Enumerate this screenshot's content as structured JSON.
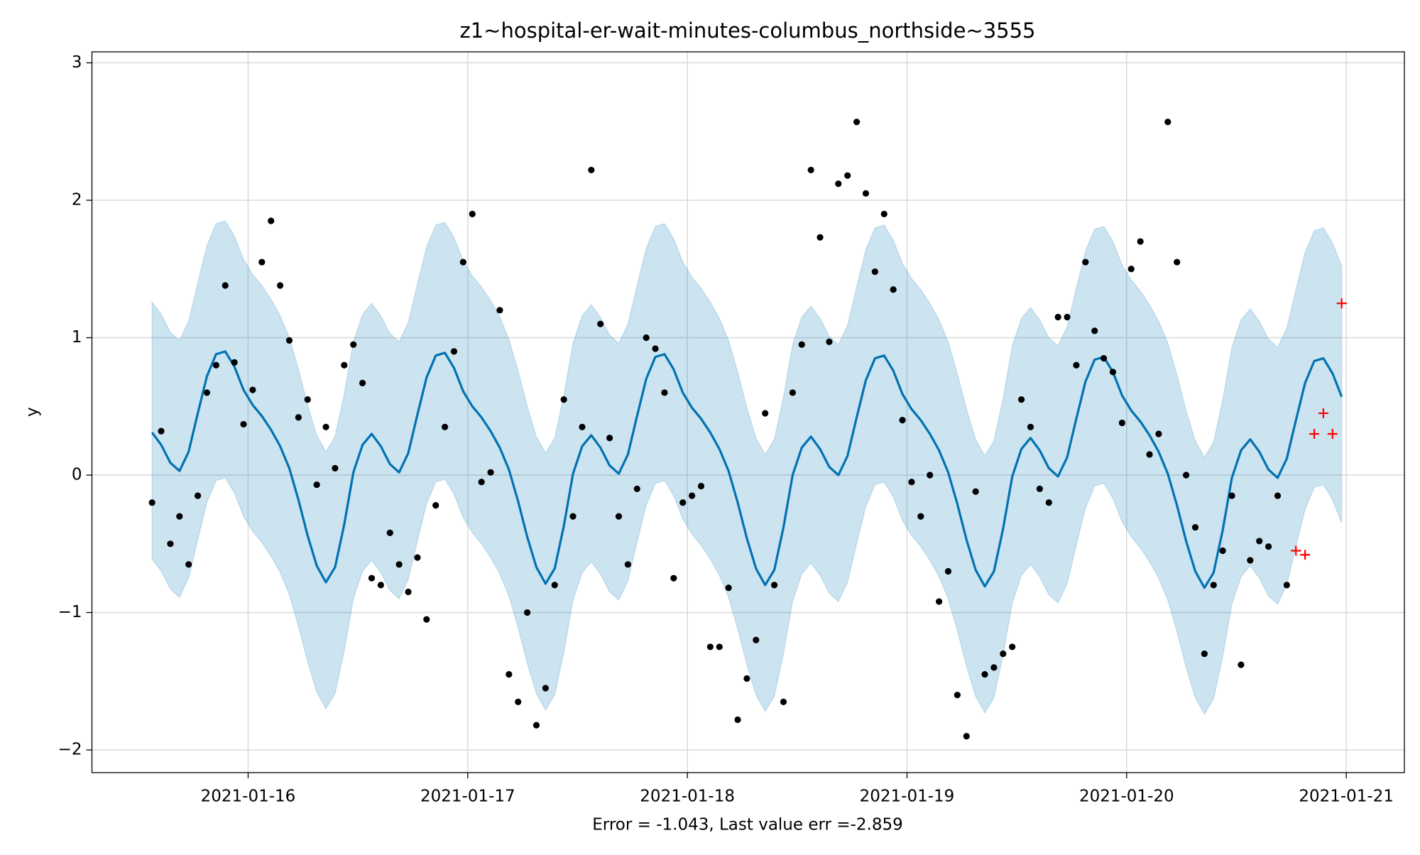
{
  "chart_data": {
    "type": "forecast",
    "title": "z1~hospital-er-wait-minutes-columbus_northside~3555",
    "xlabel": "Error = -1.043, Last value err =-2.859",
    "ylabel": "y",
    "grid": true,
    "xlim": [
      "2021-01-15T06:56",
      "2021-01-21T06:21"
    ],
    "xticks": [
      "2021-01-16",
      "2021-01-17",
      "2021-01-18",
      "2021-01-19",
      "2021-01-20",
      "2021-01-21"
    ],
    "ylim": [
      -2.165,
      3.08
    ],
    "yticks": [
      {
        "value": -2,
        "label": "−2"
      },
      {
        "value": -1,
        "label": "−1"
      },
      0,
      1,
      2,
      3
    ],
    "x": [
      "2021-01-15T13:30",
      "2021-01-15T14:30",
      "2021-01-15T15:30",
      "2021-01-15T16:30",
      "2021-01-15T17:30",
      "2021-01-15T18:30",
      "2021-01-15T19:30",
      "2021-01-15T20:30",
      "2021-01-15T21:30",
      "2021-01-15T22:30",
      "2021-01-15T23:30",
      "2021-01-16T00:30",
      "2021-01-16T01:30",
      "2021-01-16T02:30",
      "2021-01-16T03:30",
      "2021-01-16T04:30",
      "2021-01-16T05:30",
      "2021-01-16T06:30",
      "2021-01-16T07:30",
      "2021-01-16T08:30",
      "2021-01-16T09:30",
      "2021-01-16T10:30",
      "2021-01-16T11:30",
      "2021-01-16T12:30",
      "2021-01-16T13:30",
      "2021-01-16T14:30",
      "2021-01-16T15:30",
      "2021-01-16T16:30",
      "2021-01-16T17:30",
      "2021-01-16T18:30",
      "2021-01-16T19:30",
      "2021-01-16T20:30",
      "2021-01-16T21:30",
      "2021-01-16T22:30",
      "2021-01-16T23:30",
      "2021-01-17T00:30",
      "2021-01-17T01:30",
      "2021-01-17T02:30",
      "2021-01-17T03:30",
      "2021-01-17T04:30",
      "2021-01-17T05:30",
      "2021-01-17T06:30",
      "2021-01-17T07:30",
      "2021-01-17T08:30",
      "2021-01-17T09:30",
      "2021-01-17T10:30",
      "2021-01-17T11:30",
      "2021-01-17T12:30",
      "2021-01-17T13:30",
      "2021-01-17T14:30",
      "2021-01-17T15:30",
      "2021-01-17T16:30",
      "2021-01-17T17:30",
      "2021-01-17T18:30",
      "2021-01-17T19:30",
      "2021-01-17T20:30",
      "2021-01-17T21:30",
      "2021-01-17T22:30",
      "2021-01-17T23:30",
      "2021-01-18T00:30",
      "2021-01-18T01:30",
      "2021-01-18T02:30",
      "2021-01-18T03:30",
      "2021-01-18T04:30",
      "2021-01-18T05:30",
      "2021-01-18T06:30",
      "2021-01-18T07:30",
      "2021-01-18T08:30",
      "2021-01-18T09:30",
      "2021-01-18T10:30",
      "2021-01-18T11:30",
      "2021-01-18T12:30",
      "2021-01-18T13:30",
      "2021-01-18T14:30",
      "2021-01-18T15:30",
      "2021-01-18T16:30",
      "2021-01-18T17:30",
      "2021-01-18T18:30",
      "2021-01-18T19:30",
      "2021-01-18T20:30",
      "2021-01-18T21:30",
      "2021-01-18T22:30",
      "2021-01-18T23:30",
      "2021-01-19T00:30",
      "2021-01-19T01:30",
      "2021-01-19T02:30",
      "2021-01-19T03:30",
      "2021-01-19T04:30",
      "2021-01-19T05:30",
      "2021-01-19T06:30",
      "2021-01-19T07:30",
      "2021-01-19T08:30",
      "2021-01-19T09:30",
      "2021-01-19T10:30",
      "2021-01-19T11:30",
      "2021-01-19T12:30",
      "2021-01-19T13:30",
      "2021-01-19T14:30",
      "2021-01-19T15:30",
      "2021-01-19T16:30",
      "2021-01-19T17:30",
      "2021-01-19T18:30",
      "2021-01-19T19:30",
      "2021-01-19T20:30",
      "2021-01-19T21:30",
      "2021-01-19T22:30",
      "2021-01-19T23:30",
      "2021-01-20T00:30",
      "2021-01-20T01:30",
      "2021-01-20T02:30",
      "2021-01-20T03:30",
      "2021-01-20T04:30",
      "2021-01-20T05:30",
      "2021-01-20T06:30",
      "2021-01-20T07:30",
      "2021-01-20T08:30",
      "2021-01-20T09:30",
      "2021-01-20T10:30",
      "2021-01-20T11:30",
      "2021-01-20T12:30",
      "2021-01-20T13:30",
      "2021-01-20T14:30",
      "2021-01-20T15:30",
      "2021-01-20T16:30",
      "2021-01-20T17:30",
      "2021-01-20T18:30",
      "2021-01-20T19:30",
      "2021-01-20T20:30",
      "2021-01-20T21:30",
      "2021-01-20T22:30",
      "2021-01-20T23:30"
    ],
    "series": [
      {
        "type": "band",
        "color": "#0072b2",
        "upper": [
          1.26,
          1.17,
          1.04,
          0.98,
          1.12,
          1.4,
          1.67,
          1.83,
          1.85,
          1.74,
          1.57,
          1.46,
          1.38,
          1.28,
          1.16,
          1.0,
          0.77,
          0.51,
          0.29,
          0.17,
          0.28,
          0.59,
          0.97,
          1.17,
          1.25,
          1.16,
          1.03,
          0.97,
          1.11,
          1.39,
          1.66,
          1.82,
          1.84,
          1.73,
          1.56,
          1.45,
          1.37,
          1.27,
          1.15,
          0.99,
          0.76,
          0.5,
          0.28,
          0.16,
          0.27,
          0.58,
          0.96,
          1.16,
          1.24,
          1.15,
          1.02,
          0.96,
          1.1,
          1.38,
          1.65,
          1.81,
          1.83,
          1.72,
          1.55,
          1.44,
          1.36,
          1.26,
          1.14,
          0.98,
          0.75,
          0.49,
          0.27,
          0.15,
          0.26,
          0.57,
          0.95,
          1.15,
          1.23,
          1.14,
          1.01,
          0.95,
          1.09,
          1.37,
          1.64,
          1.8,
          1.82,
          1.71,
          1.54,
          1.43,
          1.35,
          1.25,
          1.13,
          0.97,
          0.74,
          0.48,
          0.26,
          0.14,
          0.25,
          0.56,
          0.94,
          1.14,
          1.22,
          1.13,
          1.0,
          0.94,
          1.08,
          1.36,
          1.63,
          1.79,
          1.81,
          1.7,
          1.53,
          1.42,
          1.34,
          1.24,
          1.12,
          0.96,
          0.73,
          0.47,
          0.25,
          0.13,
          0.24,
          0.55,
          0.93,
          1.13,
          1.21,
          1.12,
          0.99,
          0.93,
          1.07,
          1.35,
          1.62,
          1.78,
          1.8,
          1.69,
          1.52
        ],
        "lower": [
          -0.61,
          -0.7,
          -0.83,
          -0.89,
          -0.75,
          -0.47,
          -0.2,
          -0.04,
          -0.02,
          -0.13,
          -0.3,
          -0.41,
          -0.49,
          -0.59,
          -0.71,
          -0.87,
          -1.1,
          -1.36,
          -1.58,
          -1.7,
          -1.59,
          -1.28,
          -0.9,
          -0.7,
          -0.62,
          -0.71,
          -0.84,
          -0.9,
          -0.76,
          -0.48,
          -0.21,
          -0.05,
          -0.03,
          -0.14,
          -0.31,
          -0.42,
          -0.5,
          -0.6,
          -0.72,
          -0.88,
          -1.11,
          -1.37,
          -1.59,
          -1.71,
          -1.6,
          -1.29,
          -0.91,
          -0.71,
          -0.63,
          -0.72,
          -0.85,
          -0.91,
          -0.77,
          -0.49,
          -0.22,
          -0.06,
          -0.04,
          -0.15,
          -0.32,
          -0.43,
          -0.51,
          -0.61,
          -0.73,
          -0.89,
          -1.12,
          -1.38,
          -1.6,
          -1.72,
          -1.61,
          -1.3,
          -0.92,
          -0.72,
          -0.64,
          -0.73,
          -0.86,
          -0.92,
          -0.78,
          -0.5,
          -0.23,
          -0.07,
          -0.05,
          -0.16,
          -0.33,
          -0.44,
          -0.52,
          -0.62,
          -0.74,
          -0.9,
          -1.13,
          -1.39,
          -1.61,
          -1.73,
          -1.62,
          -1.31,
          -0.93,
          -0.73,
          -0.65,
          -0.74,
          -0.87,
          -0.93,
          -0.79,
          -0.51,
          -0.24,
          -0.08,
          -0.06,
          -0.17,
          -0.34,
          -0.45,
          -0.53,
          -0.63,
          -0.75,
          -0.91,
          -1.14,
          -1.4,
          -1.62,
          -1.74,
          -1.63,
          -1.32,
          -0.94,
          -0.74,
          -0.66,
          -0.75,
          -0.88,
          -0.94,
          -0.8,
          -0.52,
          -0.25,
          -0.09,
          -0.07,
          -0.18,
          -0.35
        ]
      },
      {
        "type": "line",
        "color": "#0072b2",
        "values": [
          0.31,
          0.22,
          0.09,
          0.03,
          0.17,
          0.45,
          0.72,
          0.88,
          0.9,
          0.79,
          0.62,
          0.51,
          0.43,
          0.33,
          0.21,
          0.05,
          -0.18,
          -0.44,
          -0.66,
          -0.78,
          -0.67,
          -0.36,
          0.02,
          0.22,
          0.3,
          0.21,
          0.08,
          0.02,
          0.16,
          0.44,
          0.71,
          0.87,
          0.89,
          0.78,
          0.61,
          0.5,
          0.42,
          0.32,
          0.2,
          0.04,
          -0.19,
          -0.45,
          -0.67,
          -0.79,
          -0.68,
          -0.37,
          0.01,
          0.21,
          0.29,
          0.2,
          0.07,
          0.01,
          0.15,
          0.43,
          0.7,
          0.86,
          0.88,
          0.77,
          0.6,
          0.49,
          0.41,
          0.31,
          0.19,
          0.03,
          -0.2,
          -0.46,
          -0.68,
          -0.8,
          -0.69,
          -0.38,
          0.0,
          0.2,
          0.28,
          0.19,
          0.06,
          0.0,
          0.14,
          0.42,
          0.69,
          0.85,
          0.87,
          0.76,
          0.59,
          0.48,
          0.4,
          0.3,
          0.18,
          0.02,
          -0.21,
          -0.47,
          -0.69,
          -0.81,
          -0.7,
          -0.39,
          -0.01,
          0.19,
          0.27,
          0.18,
          0.05,
          -0.01,
          0.13,
          0.41,
          0.68,
          0.84,
          0.86,
          0.75,
          0.58,
          0.47,
          0.39,
          0.29,
          0.17,
          0.01,
          -0.22,
          -0.48,
          -0.7,
          -0.82,
          -0.71,
          -0.4,
          -0.02,
          0.18,
          0.26,
          0.17,
          0.04,
          -0.02,
          0.12,
          0.4,
          0.67,
          0.83,
          0.85,
          0.74,
          0.57
        ]
      },
      {
        "type": "scatter",
        "marker": "o",
        "color": "#000000",
        "values": [
          -0.2,
          0.32,
          -0.5,
          -0.3,
          -0.65,
          -0.15,
          0.6,
          0.8,
          1.38,
          0.82,
          0.37,
          0.62,
          1.55,
          1.85,
          1.38,
          0.98,
          0.42,
          0.55,
          -0.07,
          0.35,
          0.05,
          0.8,
          0.95,
          0.67,
          -0.75,
          -0.8,
          -0.42,
          -0.65,
          -0.85,
          -0.6,
          -1.05,
          -0.22,
          0.35,
          0.9,
          1.55,
          1.9,
          -0.05,
          0.02,
          1.2,
          -1.45,
          -1.65,
          -1.0,
          -1.82,
          -1.55,
          -0.8,
          0.55,
          -0.3,
          0.35,
          2.22,
          1.1,
          0.27,
          -0.3,
          -0.65,
          -0.1,
          1.0,
          0.92,
          0.6,
          -0.75,
          -0.2,
          -0.15,
          -0.08,
          -1.25,
          -1.25,
          -0.82,
          -1.78,
          -1.48,
          -1.2,
          0.45,
          -0.8,
          -1.65,
          0.6,
          0.95,
          2.22,
          1.73,
          0.97,
          2.12,
          2.18,
          2.57,
          2.05,
          1.48,
          1.9,
          1.35,
          0.4,
          -0.05,
          -0.3,
          0.0,
          -0.92,
          -0.7,
          -1.6,
          -1.9,
          -0.12,
          -1.45,
          -1.4,
          -1.3,
          -1.25,
          0.55,
          0.35,
          -0.1,
          -0.2,
          1.15,
          1.15,
          0.8,
          1.55,
          1.05,
          0.85,
          0.75,
          0.38,
          1.5,
          1.7,
          0.15,
          0.3,
          2.57,
          1.55,
          0.0,
          -0.38,
          -1.3,
          -0.8,
          -0.55,
          -0.15,
          -1.38,
          -0.62,
          -0.48,
          -0.52,
          -0.15,
          -0.8,
          null,
          null,
          null,
          null,
          null,
          null
        ]
      },
      {
        "type": "scatter",
        "marker": "+",
        "color": "#ff0000",
        "values": [
          null,
          null,
          null,
          null,
          null,
          null,
          null,
          null,
          null,
          null,
          null,
          null,
          null,
          null,
          null,
          null,
          null,
          null,
          null,
          null,
          null,
          null,
          null,
          null,
          null,
          null,
          null,
          null,
          null,
          null,
          null,
          null,
          null,
          null,
          null,
          null,
          null,
          null,
          null,
          null,
          null,
          null,
          null,
          null,
          null,
          null,
          null,
          null,
          null,
          null,
          null,
          null,
          null,
          null,
          null,
          null,
          null,
          null,
          null,
          null,
          null,
          null,
          null,
          null,
          null,
          null,
          null,
          null,
          null,
          null,
          null,
          null,
          null,
          null,
          null,
          null,
          null,
          null,
          null,
          null,
          null,
          null,
          null,
          null,
          null,
          null,
          null,
          null,
          null,
          null,
          null,
          null,
          null,
          null,
          null,
          null,
          null,
          null,
          null,
          null,
          null,
          null,
          null,
          null,
          null,
          null,
          null,
          null,
          null,
          null,
          null,
          null,
          null,
          null,
          null,
          null,
          null,
          null,
          null,
          null,
          null,
          null,
          null,
          null,
          null,
          -0.55,
          -0.58,
          0.3,
          0.45,
          0.3,
          1.25
        ]
      }
    ]
  }
}
